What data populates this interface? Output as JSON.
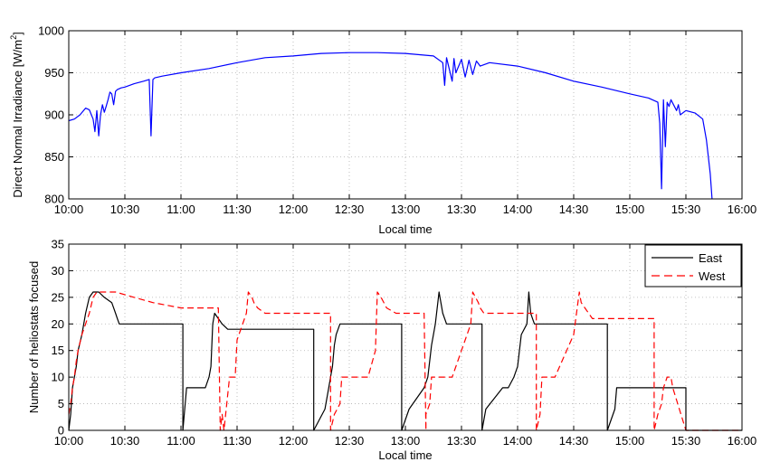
{
  "chart_data": [
    {
      "type": "line",
      "title": "",
      "xlabel": "Local time",
      "ylabel": "Direct Normal Irradiance [W/m",
      "ylabel_sup": "2",
      "ylabel_end": "]",
      "xlim": [
        "10:00",
        "16:00"
      ],
      "ylim": [
        800,
        1000
      ],
      "xticks": [
        "10:00",
        "10:30",
        "11:00",
        "11:30",
        "12:00",
        "12:30",
        "13:00",
        "13:30",
        "14:00",
        "14:30",
        "15:00",
        "15:30",
        "16:00"
      ],
      "yticks": [
        "800",
        "850",
        "900",
        "950",
        "1000"
      ],
      "grid": true,
      "series": [
        {
          "color": "#0000ff",
          "x": [
            "10:00",
            "10:03",
            "10:06",
            "10:09",
            "10:11",
            "10:13",
            "10:14",
            "10:15",
            "10:16",
            "10:17",
            "10:18",
            "10:19",
            "10:20",
            "10:21",
            "10:22",
            "10:23",
            "10:24",
            "10:25",
            "10:26",
            "10:28",
            "10:30",
            "10:35",
            "10:40",
            "10:43",
            "10:44",
            "10:45",
            "10:46",
            "10:50",
            "11:00",
            "11:15",
            "11:30",
            "11:45",
            "12:00",
            "12:15",
            "12:30",
            "12:45",
            "13:00",
            "13:15",
            "13:20",
            "13:21",
            "13:22",
            "13:25",
            "13:26",
            "13:27",
            "13:30",
            "13:32",
            "13:34",
            "13:36",
            "13:38",
            "13:40",
            "13:45",
            "14:00",
            "14:15",
            "14:30",
            "14:45",
            "15:00",
            "15:10",
            "15:15",
            "15:16",
            "15:17",
            "15:18",
            "15:19",
            "15:20",
            "15:21",
            "15:22",
            "15:25",
            "15:26",
            "15:27",
            "15:30",
            "15:35",
            "15:39",
            "15:41",
            "15:43",
            "15:44"
          ],
          "y": [
            893,
            895,
            900,
            908,
            906,
            895,
            880,
            905,
            875,
            900,
            912,
            903,
            910,
            918,
            927,
            925,
            912,
            928,
            930,
            932,
            933,
            937,
            940,
            942,
            875,
            942,
            944,
            946,
            950,
            955,
            962,
            968,
            970,
            973,
            974,
            974,
            973,
            970,
            962,
            935,
            968,
            940,
            967,
            950,
            966,
            945,
            965,
            948,
            964,
            958,
            962,
            958,
            950,
            940,
            933,
            925,
            920,
            915,
            890,
            812,
            918,
            862,
            915,
            910,
            918,
            905,
            912,
            900,
            905,
            902,
            895,
            870,
            830,
            800
          ]
        }
      ]
    },
    {
      "type": "line",
      "title": "",
      "xlabel": "Local time",
      "ylabel": "Number of heliostats focused",
      "xlim": [
        "10:00",
        "16:00"
      ],
      "ylim": [
        0,
        35
      ],
      "xticks": [
        "10:00",
        "10:30",
        "11:00",
        "11:30",
        "12:00",
        "12:30",
        "13:00",
        "13:30",
        "14:00",
        "14:30",
        "15:00",
        "15:30",
        "16:00"
      ],
      "yticks": [
        "0",
        "5",
        "10",
        "15",
        "20",
        "25",
        "30",
        "35"
      ],
      "grid": true,
      "legend": "top-right",
      "series": [
        {
          "name": "East",
          "color": "#000000",
          "dash": "solid",
          "x": [
            "10:00",
            "10:01",
            "10:02",
            "10:03",
            "10:04",
            "10:05",
            "10:07",
            "10:09",
            "10:11",
            "10:13",
            "10:16",
            "10:19",
            "10:23",
            "10:24",
            "10:25",
            "10:26",
            "10:27",
            "10:28",
            "10:30",
            "10:40",
            "11:01",
            "11:01",
            "11:03",
            "11:13",
            "11:15",
            "11:16",
            "11:17",
            "11:18",
            "11:20",
            "11:22",
            "11:25",
            "11:30",
            "11:45",
            "12:11",
            "12:11",
            "12:17",
            "12:19",
            "12:20",
            "12:21",
            "12:22",
            "12:23",
            "12:25",
            "12:27",
            "12:30",
            "12:45",
            "12:58",
            "12:58",
            "13:02",
            "13:10",
            "13:12",
            "13:14",
            "13:15",
            "13:16",
            "13:18",
            "13:20",
            "13:22",
            "13:23",
            "13:25",
            "13:27",
            "13:30",
            "13:35",
            "13:41",
            "13:41",
            "13:43",
            "13:52",
            "13:55",
            "13:58",
            "14:00",
            "14:02",
            "14:05",
            "14:06",
            "14:07",
            "14:08",
            "14:09",
            "14:10",
            "14:30",
            "14:45",
            "14:48",
            "14:48",
            "14:52",
            "14:53",
            "15:30",
            "15:30",
            "16:00"
          ],
          "y": [
            0,
            3,
            8,
            10,
            12,
            15,
            18,
            22,
            25,
            26,
            26,
            25,
            24,
            23,
            22,
            21,
            20,
            20,
            20,
            20,
            20,
            0,
            8,
            8,
            10,
            12,
            20,
            22,
            21,
            20,
            19,
            19,
            19,
            19,
            0,
            4,
            8,
            10,
            12,
            16,
            18,
            20,
            20,
            20,
            20,
            20,
            0,
            4,
            8,
            10,
            16,
            18,
            20,
            26,
            22,
            20,
            20,
            20,
            20,
            20,
            20,
            20,
            0,
            4,
            8,
            8,
            10,
            12,
            18,
            20,
            26,
            22,
            21,
            20,
            20,
            20,
            20,
            20,
            0,
            4,
            8,
            8,
            0,
            0
          ]
        },
        {
          "name": "West",
          "color": "#ff0000",
          "dash": "dashed",
          "x": [
            "10:00",
            "10:01",
            "10:02",
            "10:03",
            "10:04",
            "10:05",
            "10:07",
            "10:09",
            "10:11",
            "10:13",
            "10:15",
            "10:18",
            "10:22",
            "10:25",
            "10:35",
            "10:45",
            "11:00",
            "11:20",
            "11:21",
            "11:22",
            "11:23",
            "11:26",
            "11:29",
            "11:30",
            "11:35",
            "11:36",
            "11:38",
            "11:39",
            "11:41",
            "11:45",
            "11:55",
            "12:20",
            "12:20",
            "12:22",
            "12:25",
            "12:26",
            "12:27",
            "12:28",
            "12:30",
            "12:40",
            "12:44",
            "12:45",
            "12:47",
            "12:50",
            "12:55",
            "13:00",
            "13:10",
            "13:11",
            "13:11",
            "13:13",
            "13:14",
            "13:16",
            "13:18",
            "13:20",
            "13:25",
            "13:35",
            "13:36",
            "13:39",
            "13:40",
            "13:42",
            "13:45",
            "13:50",
            "14:10",
            "14:10",
            "14:12",
            "14:13",
            "14:15",
            "14:16",
            "14:18",
            "14:20",
            "14:30",
            "14:33",
            "14:34",
            "14:36",
            "14:38",
            "14:40",
            "14:45",
            "14:50",
            "15:13",
            "15:13",
            "15:15",
            "15:17",
            "15:18",
            "15:20",
            "15:22",
            "15:23",
            "15:30",
            "15:32",
            "16:00"
          ],
          "y": [
            3,
            5,
            8,
            10,
            13,
            15,
            18,
            20,
            22,
            25,
            26,
            26,
            26,
            26,
            25,
            24,
            23,
            23,
            0,
            3,
            0,
            10,
            10,
            17,
            22,
            26,
            25,
            24,
            23,
            22,
            22,
            22,
            0,
            3,
            5,
            10,
            10,
            10,
            10,
            10,
            15,
            26,
            25,
            23,
            22,
            22,
            22,
            0,
            3,
            5,
            10,
            10,
            10,
            10,
            10,
            20,
            26,
            24,
            23,
            22,
            22,
            22,
            22,
            0,
            3,
            10,
            10,
            10,
            10,
            10,
            18,
            26,
            24,
            23,
            22,
            21,
            21,
            21,
            21,
            0,
            3,
            5,
            8,
            10,
            10,
            8,
            0,
            0,
            0
          ]
        }
      ]
    }
  ]
}
